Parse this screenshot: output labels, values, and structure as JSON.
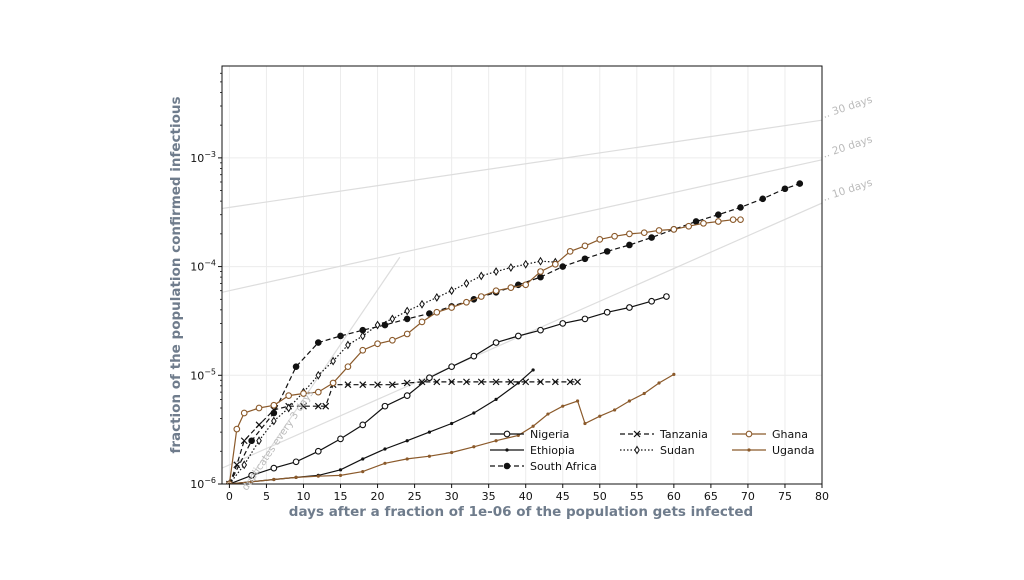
{
  "chart_data": {
    "type": "line",
    "xlabel": "days after a fraction of 1e-06 of the population gets infected",
    "ylabel": "fraction of the population confirmed infectious",
    "x_scale": "linear",
    "y_scale": "log",
    "xlim": [
      -1,
      80
    ],
    "ylim": [
      1e-06,
      0.007
    ],
    "x_ticks": [
      0,
      5,
      10,
      15,
      20,
      25,
      30,
      35,
      40,
      45,
      50,
      55,
      60,
      65,
      70,
      75,
      80
    ],
    "x_tick_labels": [
      "0",
      "5",
      "10",
      "15",
      "20",
      "25",
      "30",
      "35",
      "40",
      "45",
      "50",
      "55",
      "60",
      "65",
      "70",
      "75",
      "80"
    ],
    "y_ticks": [
      1e-06,
      1e-05,
      0.0001,
      0.001
    ],
    "y_tick_labels": [
      {
        "base": "10",
        "exp": "−6"
      },
      {
        "base": "10",
        "exp": "−5"
      },
      {
        "base": "10",
        "exp": "−4"
      },
      {
        "base": "10",
        "exp": "−3"
      }
    ],
    "grid": true,
    "legend_position": "lower-right",
    "colors": {
      "black": "#111111",
      "brown": "#8b5a2b",
      "guide": "#dddddd",
      "guide_text": "#bbbbbb",
      "axis_label": "#6f7c8c"
    },
    "guide_lines": [
      {
        "label": "duplicates every 3 days",
        "x0": 0,
        "y0": 6e-07,
        "doubling_days": 3,
        "x_end": 23
      },
      {
        "label": "30 days",
        "x0": 0,
        "y0": 0.00035,
        "doubling_days": 30,
        "x_end": 80
      },
      {
        "label": "20 days",
        "x0": 0,
        "y0": 6e-05,
        "doubling_days": 20,
        "x_end": 80
      },
      {
        "label": "10 days",
        "x0": 0,
        "y0": 1.5e-06,
        "doubling_days": 10,
        "x_end": 80
      }
    ],
    "series": [
      {
        "name": "Nigeria",
        "color": "black",
        "dash": "solid",
        "marker": "open-circle",
        "x": [
          0,
          3,
          6,
          9,
          12,
          15,
          18,
          21,
          24,
          27,
          30,
          33,
          36,
          39,
          42,
          45,
          48,
          51,
          54,
          57,
          59
        ],
        "y": [
          1e-06,
          1.2e-06,
          1.4e-06,
          1.6e-06,
          2e-06,
          2.6e-06,
          3.5e-06,
          5.2e-06,
          6.5e-06,
          9.5e-06,
          1.2e-05,
          1.5e-05,
          2e-05,
          2.3e-05,
          2.6e-05,
          3e-05,
          3.3e-05,
          3.8e-05,
          4.2e-05,
          4.8e-05,
          5.3e-05
        ]
      },
      {
        "name": "Ethiopia",
        "color": "black",
        "dash": "solid",
        "marker": "small-dot",
        "x": [
          0,
          3,
          6,
          9,
          12,
          15,
          18,
          21,
          24,
          27,
          30,
          33,
          36,
          39,
          41
        ],
        "y": [
          1e-06,
          1.05e-06,
          1.1e-06,
          1.15e-06,
          1.2e-06,
          1.35e-06,
          1.7e-06,
          2.1e-06,
          2.5e-06,
          3e-06,
          3.6e-06,
          4.5e-06,
          6e-06,
          8.5e-06,
          1.12e-05
        ]
      },
      {
        "name": "South Africa",
        "color": "black",
        "dash": "dashed",
        "marker": "filled-circle",
        "x": [
          0,
          3,
          6,
          9,
          12,
          15,
          18,
          21,
          24,
          27,
          30,
          33,
          36,
          39,
          42,
          45,
          48,
          51,
          54,
          57,
          60,
          63,
          66,
          69,
          72,
          75,
          77
        ],
        "y": [
          1e-06,
          2.5e-06,
          4.5e-06,
          1.2e-05,
          2e-05,
          2.3e-05,
          2.6e-05,
          2.9e-05,
          3.3e-05,
          3.7e-05,
          4.3e-05,
          5e-05,
          5.8e-05,
          6.8e-05,
          8e-05,
          0.0001,
          0.000118,
          0.000138,
          0.000158,
          0.000185,
          0.00022,
          0.00026,
          0.0003,
          0.00035,
          0.00042,
          0.00052,
          0.00058
        ]
      },
      {
        "name": "Tanzania",
        "color": "black",
        "dash": "dashed",
        "marker": "x",
        "x": [
          0,
          1,
          2,
          4,
          6,
          8,
          10,
          12,
          13,
          14,
          16,
          18,
          20,
          22,
          24,
          26,
          28,
          30,
          32,
          34,
          36,
          38,
          40,
          42,
          44,
          46,
          47
        ],
        "y": [
          1e-06,
          1.5e-06,
          2.5e-06,
          3.5e-06,
          4.8e-06,
          5.2e-06,
          5.2e-06,
          5.2e-06,
          5.2e-06,
          8.2e-06,
          8.2e-06,
          8.2e-06,
          8.2e-06,
          8.2e-06,
          8.5e-06,
          8.7e-06,
          8.7e-06,
          8.7e-06,
          8.7e-06,
          8.7e-06,
          8.7e-06,
          8.7e-06,
          8.7e-06,
          8.7e-06,
          8.7e-06,
          8.7e-06,
          8.7e-06
        ]
      },
      {
        "name": "Sudan",
        "color": "black",
        "dash": "dotted",
        "marker": "diamond",
        "x": [
          0,
          2,
          4,
          6,
          8,
          10,
          12,
          14,
          16,
          18,
          20,
          22,
          24,
          26,
          28,
          30,
          32,
          34,
          36,
          38,
          40,
          42,
          44
        ],
        "y": [
          1e-06,
          1.5e-06,
          2.5e-06,
          3.8e-06,
          5e-06,
          7e-06,
          1e-05,
          1.35e-05,
          1.9e-05,
          2.3e-05,
          2.9e-05,
          3.3e-05,
          3.9e-05,
          4.5e-05,
          5.2e-05,
          6e-05,
          7e-05,
          8.2e-05,
          9e-05,
          9.8e-05,
          0.000105,
          0.000112,
          0.00011
        ]
      },
      {
        "name": "Ghana",
        "color": "brown",
        "dash": "solid",
        "marker": "open-circle",
        "x": [
          0,
          1,
          2,
          4,
          6,
          8,
          10,
          12,
          14,
          16,
          18,
          20,
          22,
          24,
          26,
          28,
          30,
          32,
          34,
          36,
          38,
          40,
          42,
          44,
          46,
          48,
          50,
          52,
          54,
          56,
          58,
          60,
          62,
          64,
          66,
          68,
          69
        ],
        "y": [
          1e-06,
          3.2e-06,
          4.5e-06,
          5e-06,
          5.3e-06,
          6.5e-06,
          6.8e-06,
          7e-06,
          8.5e-06,
          1.2e-05,
          1.7e-05,
          1.95e-05,
          2.1e-05,
          2.4e-05,
          3.1e-05,
          3.8e-05,
          4.2e-05,
          4.7e-05,
          5.3e-05,
          6e-05,
          6.4e-05,
          6.8e-05,
          9e-05,
          0.000105,
          0.000138,
          0.000155,
          0.000178,
          0.00019,
          0.0002,
          0.000205,
          0.000215,
          0.00022,
          0.000235,
          0.00025,
          0.00026,
          0.00027,
          0.00027
        ]
      },
      {
        "name": "Uganda",
        "color": "brown",
        "dash": "solid",
        "marker": "small-dot",
        "x": [
          0,
          3,
          6,
          9,
          12,
          15,
          18,
          21,
          24,
          27,
          30,
          33,
          36,
          39,
          41,
          43,
          45,
          47,
          48,
          50,
          52,
          54,
          56,
          58,
          60
        ],
        "y": [
          1e-06,
          1.05e-06,
          1.1e-06,
          1.15e-06,
          1.18e-06,
          1.2e-06,
          1.3e-06,
          1.55e-06,
          1.7e-06,
          1.8e-06,
          1.95e-06,
          2.2e-06,
          2.5e-06,
          2.8e-06,
          3.4e-06,
          4.4e-06,
          5.2e-06,
          5.8e-06,
          3.6e-06,
          4.2e-06,
          4.8e-06,
          5.8e-06,
          6.8e-06,
          8.5e-06,
          1.02e-05
        ]
      }
    ]
  }
}
